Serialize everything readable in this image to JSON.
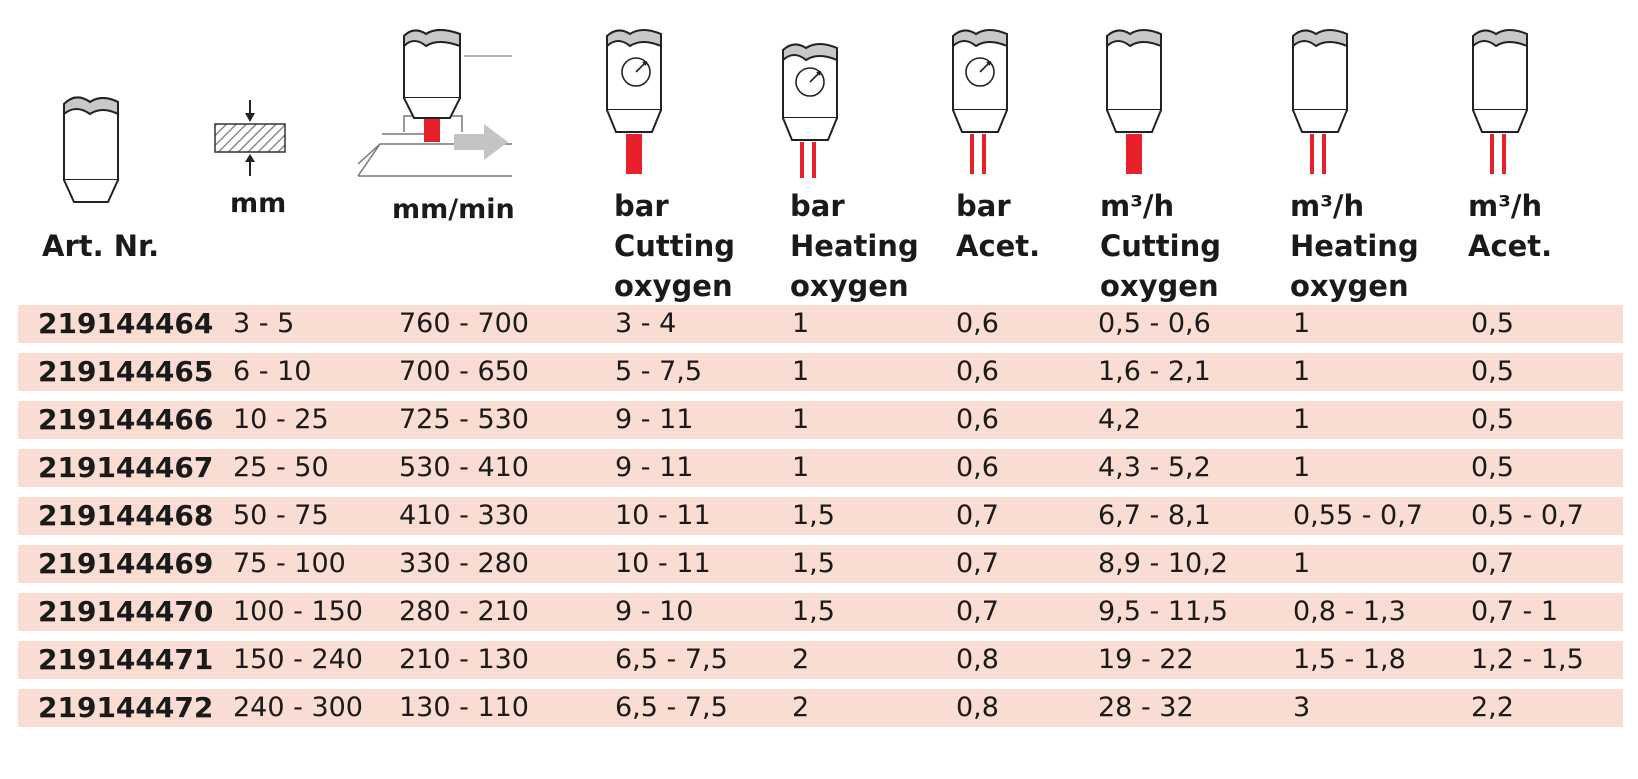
{
  "headers": {
    "art_nr": {
      "lines": [
        "Art. Nr."
      ],
      "icon": "torch-nozzle-icon"
    },
    "thickness": {
      "lines": [
        "mm"
      ],
      "icon": "material-thickness-icon"
    },
    "speed": {
      "lines": [
        "mm/min"
      ],
      "icon": "cutting-speed-icon"
    },
    "bar_cutting": {
      "lines": [
        "bar",
        "Cutting",
        "oxygen"
      ],
      "icon": "torch-gauge-cutting-stream-icon"
    },
    "bar_heating": {
      "lines": [
        "bar",
        "Heating",
        "oxygen"
      ],
      "icon": "torch-gauge-heating-streams-icon"
    },
    "bar_acet": {
      "lines": [
        "bar",
        "Acet."
      ],
      "icon": "torch-gauge-acetylene-icon"
    },
    "flow_cutting": {
      "lines": [
        "m³/h",
        "Cutting",
        "oxygen"
      ],
      "icon": "torch-cutting-stream-icon"
    },
    "flow_heating": {
      "lines": [
        "m³/h",
        "Heating",
        "oxygen"
      ],
      "icon": "torch-heating-streams-icon"
    },
    "flow_acet": {
      "lines": [
        "m³/h",
        "Acet."
      ],
      "icon": "torch-acetylene-streams-icon"
    }
  },
  "rows": [
    [
      "219144464",
      "3 - 5",
      "760 - 700",
      "3 - 4",
      "1",
      "0,6",
      "0,5 - 0,6",
      "1",
      "0,5"
    ],
    [
      "219144465",
      "6 - 10",
      "700 - 650",
      "5 - 7,5",
      "1",
      "0,6",
      "1,6 - 2,1",
      "1",
      "0,5"
    ],
    [
      "219144466",
      "10 - 25",
      "725 - 530",
      "9 - 11",
      "1",
      "0,6",
      "4,2",
      "1",
      "0,5"
    ],
    [
      "219144467",
      "25 - 50",
      "530 - 410",
      "9 - 11",
      "1",
      "0,6",
      "4,3 - 5,2",
      "1",
      "0,5"
    ],
    [
      "219144468",
      "50 - 75",
      "410 - 330",
      "10 - 11",
      "1,5",
      "0,7",
      "6,7 - 8,1",
      "0,55 - 0,7",
      "0,5 - 0,7"
    ],
    [
      "219144469",
      "75 - 100",
      "330 - 280",
      "10 - 11",
      "1,5",
      "0,7",
      "8,9 - 10,2",
      "1",
      "0,7"
    ],
    [
      "219144470",
      "100 - 150",
      "280 - 210",
      "9 - 10",
      "1,5",
      "0,7",
      "9,5 - 11,5",
      "0,8 - 1,3",
      "0,7 - 1"
    ],
    [
      "219144471",
      "150 - 240",
      "210 - 130",
      "6,5 - 7,5",
      "2",
      "0,8",
      "19 - 22",
      "1,5 - 1,8",
      "1,2 - 1,5"
    ],
    [
      "219144472",
      "240 - 300",
      "130 - 110",
      "6,5 - 7,5",
      "2",
      "0,8",
      "28 - 32",
      "3",
      "2,2"
    ]
  ],
  "colors": {
    "row_background": "#f9ddd3",
    "stream_red": "#e8202a",
    "nozzle_grey": "#c8c8c8",
    "hatch_grey": "#8a8a8a",
    "arrow_grey": "#c4c4c4"
  }
}
